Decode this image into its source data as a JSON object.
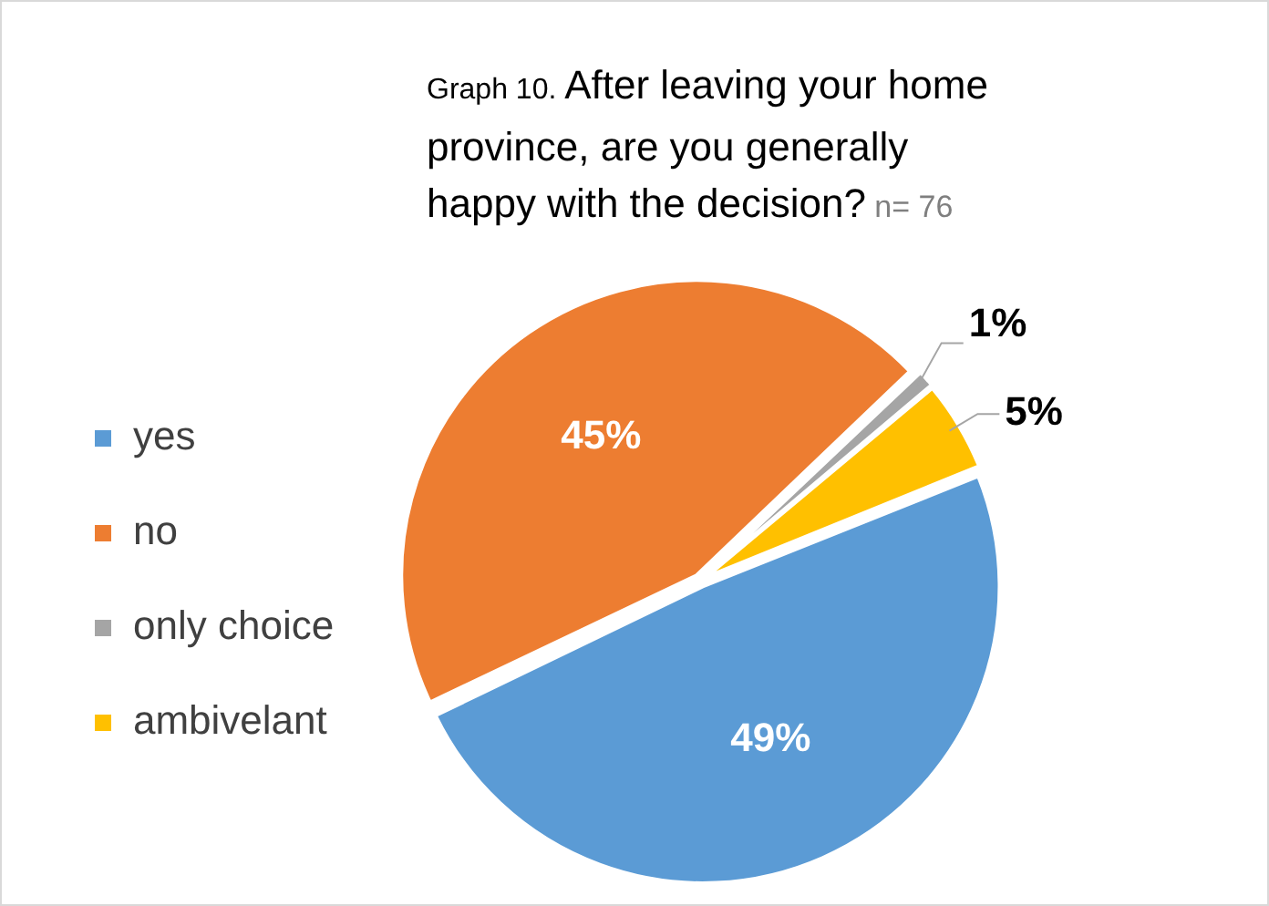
{
  "chart_data": {
    "type": "pie",
    "title": "Graph 10. After leaving your home province, are you generally happy with the decision?",
    "subtitle": "n= 76",
    "categories": [
      "yes",
      "no",
      "only choice",
      "ambivelant"
    ],
    "values": [
      49,
      45,
      1,
      5
    ],
    "colors": [
      "#5b9bd5",
      "#ed7d31",
      "#a5a5a5",
      "#ffc000"
    ],
    "value_labels": [
      "49%",
      "45%",
      "1%",
      "5%"
    ],
    "legend": "left"
  }
}
